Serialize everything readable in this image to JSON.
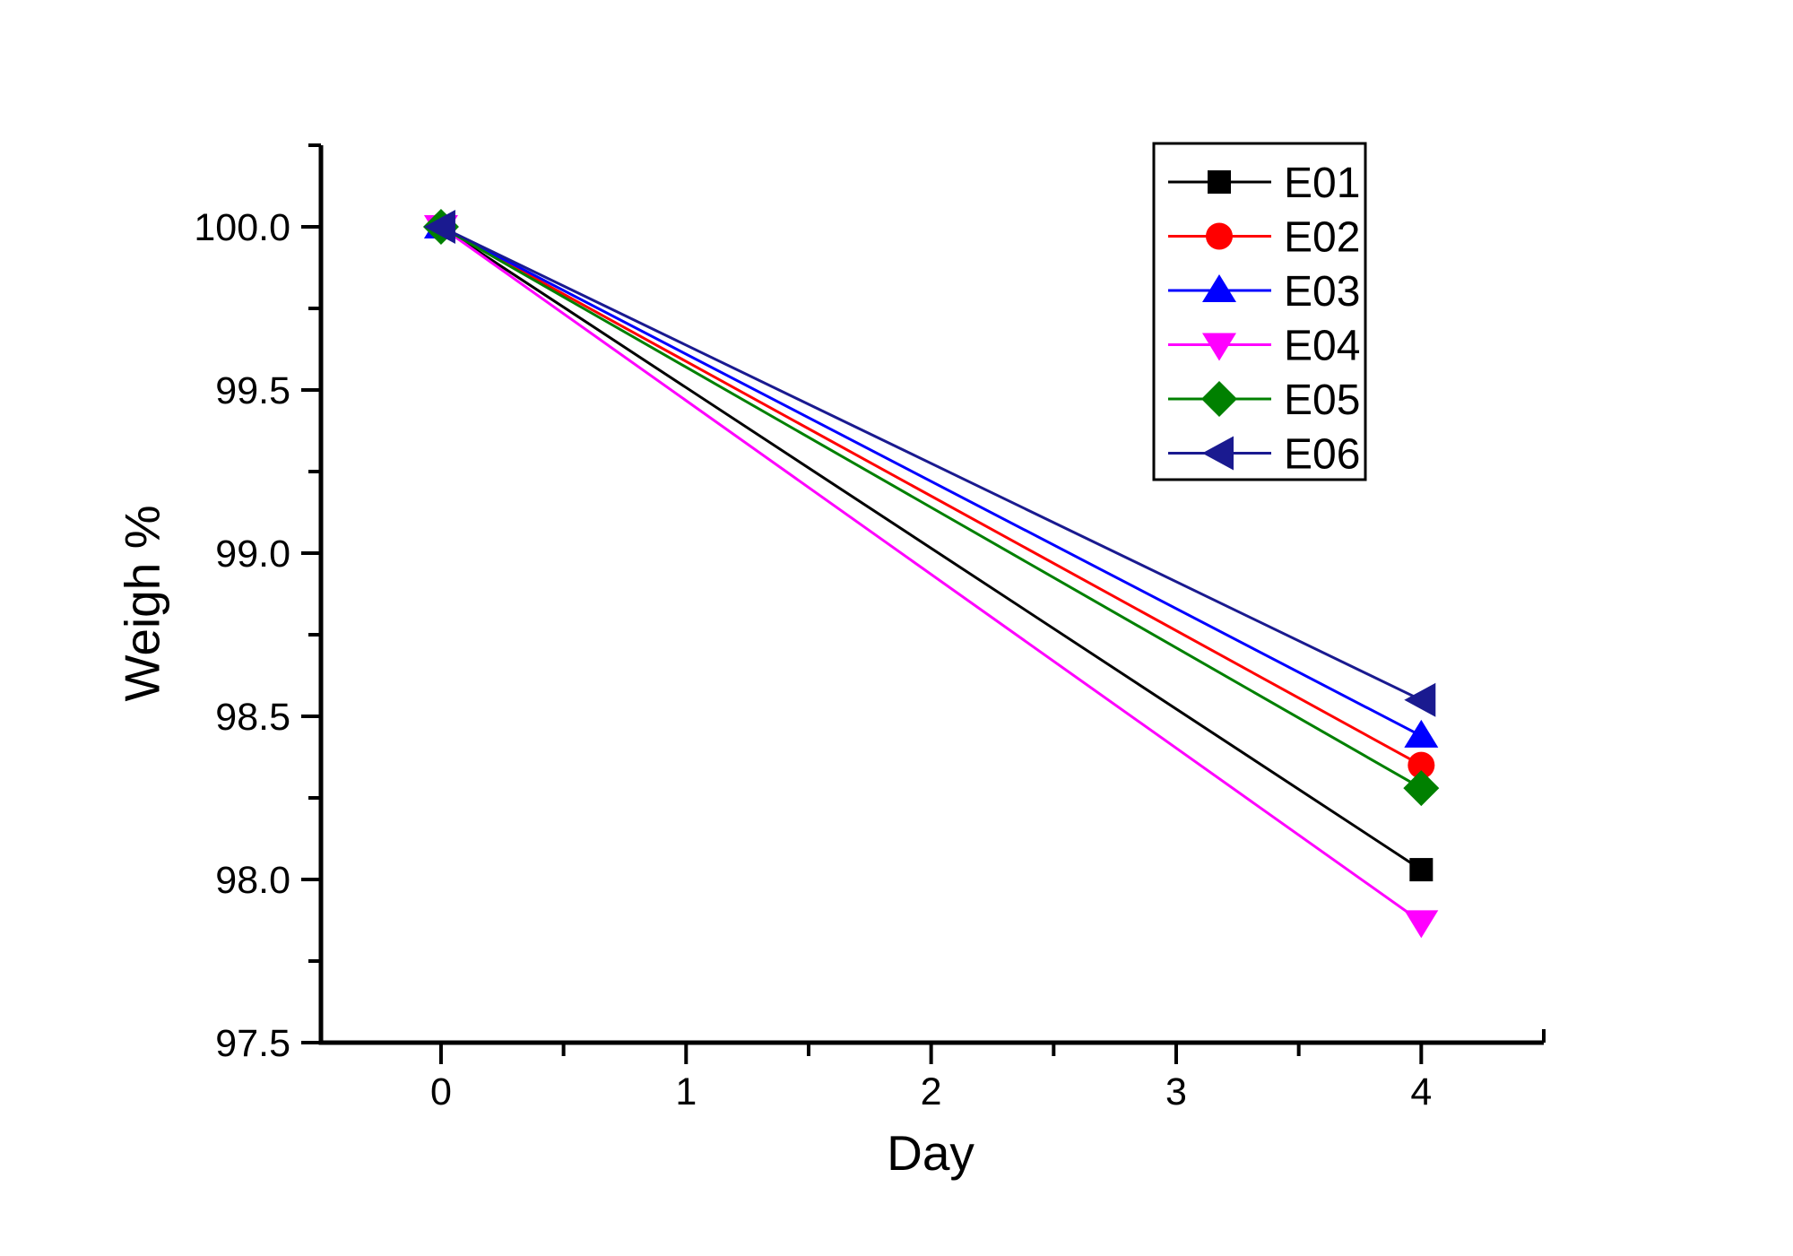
{
  "chart_data": {
    "type": "line",
    "title": "",
    "xlabel": "Day",
    "ylabel": "Weigh %",
    "xlim": [
      -0.49,
      4.5
    ],
    "ylim": [
      97.5,
      100.25
    ],
    "grid": false,
    "x_major_ticks": [
      0,
      1,
      2,
      3,
      4
    ],
    "x_major_tick_labels": [
      "0",
      "1",
      "2",
      "3",
      "4"
    ],
    "x_minor_ticks": [
      0.5,
      1.5,
      2.5,
      3.5,
      4.5
    ],
    "y_major_ticks": [
      97.5,
      98.0,
      98.5,
      99.0,
      99.5,
      100.0
    ],
    "y_major_tick_labels": [
      "97.5",
      "98.0",
      "98.5",
      "99.0",
      "99.5",
      "100.0"
    ],
    "y_minor_ticks": [
      97.75,
      98.25,
      98.75,
      99.25,
      99.75,
      100.25
    ],
    "axis_color": "#000000",
    "legend_position": "top-right",
    "series": [
      {
        "name": "E01",
        "color": "#000000",
        "marker": "square",
        "x": [
          0,
          4
        ],
        "y": [
          100.0,
          98.03
        ]
      },
      {
        "name": "E02",
        "color": "#ff0000",
        "marker": "circle",
        "x": [
          0,
          4
        ],
        "y": [
          100.0,
          98.35
        ]
      },
      {
        "name": "E03",
        "color": "#0000ff",
        "marker": "triangle-up",
        "x": [
          0,
          4
        ],
        "y": [
          100.0,
          98.44
        ]
      },
      {
        "name": "E04",
        "color": "#ff00ff",
        "marker": "triangle-down",
        "x": [
          0,
          4
        ],
        "y": [
          100.0,
          97.87
        ]
      },
      {
        "name": "E05",
        "color": "#008000",
        "marker": "diamond",
        "x": [
          0,
          4
        ],
        "y": [
          100.0,
          98.28
        ]
      },
      {
        "name": "E06",
        "color": "#1a1a90",
        "marker": "triangle-left",
        "x": [
          0,
          4
        ],
        "y": [
          100.0,
          98.55
        ]
      }
    ]
  }
}
